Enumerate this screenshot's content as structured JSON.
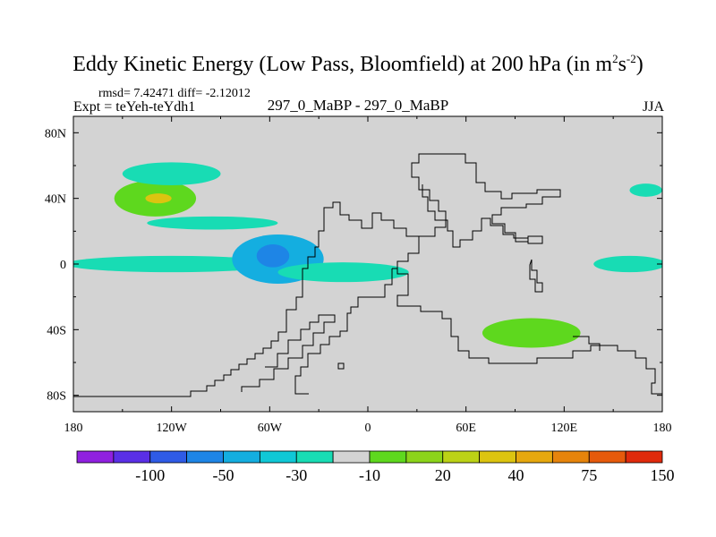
{
  "chart_data": {
    "type": "heatmap",
    "title_main": "Eddy Kinetic Energy (Low Pass, Bloomfield) at 200 hPa (in m",
    "title_sup1": "2",
    "title_mid": "s",
    "title_sup2": "-2",
    "title_close": ")",
    "stats": "rmsd= 7.42471 diff= -2.12012",
    "experiment": "Expt = teYeh-teYdh1",
    "center_label": "297_0_MaBP - 297_0_MaBP",
    "season": "JJA",
    "xlim": [
      -180,
      180
    ],
    "ylim": [
      -90,
      90
    ],
    "x_ticks": [
      {
        "value": -180,
        "label": "180"
      },
      {
        "value": -120,
        "label": "120W"
      },
      {
        "value": -60,
        "label": "60W"
      },
      {
        "value": 0,
        "label": "0"
      },
      {
        "value": 60,
        "label": "60E"
      },
      {
        "value": 120,
        "label": "120E"
      },
      {
        "value": 180,
        "label": "180"
      }
    ],
    "y_ticks": [
      {
        "value": 80,
        "label": "80N"
      },
      {
        "value": 40,
        "label": "40N"
      },
      {
        "value": 0,
        "label": "0"
      },
      {
        "value": -40,
        "label": "40S"
      },
      {
        "value": -80,
        "label": "80S"
      }
    ],
    "colorbar": {
      "colors": [
        "#9020e0",
        "#5a2fe6",
        "#2f5be6",
        "#1e85e6",
        "#14aee0",
        "#10c8d6",
        "#18dcb4",
        "#d3d3d3",
        "#5ed81e",
        "#8cd41a",
        "#bcd216",
        "#dcc410",
        "#e6a80e",
        "#e6840c",
        "#e65a0c",
        "#e02a0c"
      ],
      "tick_labels": [
        "-100",
        "-50",
        "-30",
        "-10",
        "20",
        "40",
        "75",
        "150"
      ]
    },
    "features": [
      {
        "name": "north-pacific-jet-positive",
        "lon": -130,
        "lat": 40,
        "rx": 25,
        "ry": 11,
        "level": 20,
        "color": "#5ed81e"
      },
      {
        "name": "north-pacific-jet-core",
        "lon": -128,
        "lat": 40,
        "rx": 8,
        "ry": 3,
        "level": 75,
        "color": "#dcc410"
      },
      {
        "name": "north-pacific-negative",
        "lon": -120,
        "lat": 55,
        "rx": 30,
        "ry": 7,
        "level": -10,
        "color": "#18dcb4"
      },
      {
        "name": "central-pacific-negative",
        "lon": -95,
        "lat": 25,
        "rx": 40,
        "ry": 4,
        "level": -10,
        "color": "#18dcb4"
      },
      {
        "name": "tropical-pacific-negative",
        "lon": -120,
        "lat": 0,
        "rx": 65,
        "ry": 5,
        "level": -10,
        "color": "#18dcb4"
      },
      {
        "name": "south-america-minimum-outer",
        "lon": -55,
        "lat": 3,
        "rx": 28,
        "ry": 15,
        "level": -30,
        "color": "#14aee0"
      },
      {
        "name": "south-america-minimum-core",
        "lon": -58,
        "lat": 5,
        "rx": 10,
        "ry": 7,
        "level": -50,
        "color": "#1e85e6"
      },
      {
        "name": "tropical-atlantic-negative",
        "lon": -15,
        "lat": -5,
        "rx": 40,
        "ry": 6,
        "level": -10,
        "color": "#18dcb4"
      },
      {
        "name": "indian-ocean-positive",
        "lon": 100,
        "lat": -42,
        "rx": 30,
        "ry": 9,
        "level": 20,
        "color": "#5ed81e"
      },
      {
        "name": "east-pacific-negative",
        "lon": 160,
        "lat": 0,
        "rx": 22,
        "ry": 5,
        "level": -10,
        "color": "#18dcb4"
      },
      {
        "name": "dateline-negative",
        "lon": 170,
        "lat": 45,
        "rx": 10,
        "ry": 4,
        "level": -10,
        "color": "#18dcb4"
      }
    ]
  }
}
